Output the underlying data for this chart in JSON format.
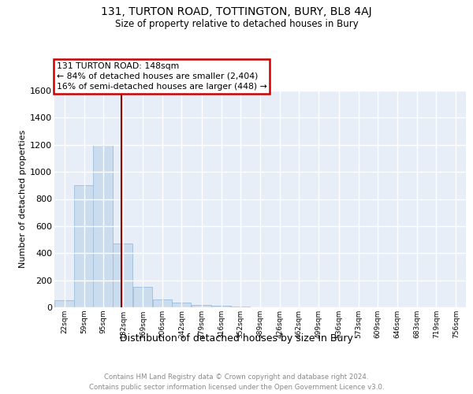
{
  "title": "131, TURTON ROAD, TOTTINGTON, BURY, BL8 4AJ",
  "subtitle": "Size of property relative to detached houses in Bury",
  "xlabel": "Distribution of detached houses by size in Bury",
  "ylabel": "Number of detached properties",
  "annotation_line1": "131 TURTON ROAD: 148sqm",
  "annotation_line2": "← 84% of detached houses are smaller (2,404)",
  "annotation_line3": "16% of semi-detached houses are larger (448) →",
  "property_size": 148,
  "bar_color": "#ccdcef",
  "bar_edge_color": "#9bbdd8",
  "plot_bg_color": "#e8eef8",
  "fig_bg_color": "#ffffff",
  "grid_color": "#ffffff",
  "ref_line_color": "#990000",
  "categories": [
    "22sqm",
    "59sqm",
    "95sqm",
    "132sqm",
    "169sqm",
    "206sqm",
    "242sqm",
    "279sqm",
    "316sqm",
    "352sqm",
    "389sqm",
    "426sqm",
    "462sqm",
    "499sqm",
    "536sqm",
    "573sqm",
    "609sqm",
    "646sqm",
    "683sqm",
    "719sqm",
    "756sqm"
  ],
  "bin_edges": [
    22,
    59,
    95,
    132,
    169,
    206,
    242,
    279,
    316,
    352,
    389,
    426,
    462,
    499,
    536,
    573,
    609,
    646,
    683,
    719,
    756
  ],
  "bin_width": 37,
  "values": [
    55,
    900,
    1200,
    470,
    150,
    58,
    33,
    18,
    13,
    8,
    0,
    0,
    0,
    0,
    0,
    0,
    0,
    0,
    0,
    0,
    0
  ],
  "ylim": [
    0,
    1600
  ],
  "yticks": [
    0,
    200,
    400,
    600,
    800,
    1000,
    1200,
    1400,
    1600
  ],
  "footer_line1": "Contains HM Land Registry data © Crown copyright and database right 2024.",
  "footer_line2": "Contains public sector information licensed under the Open Government Licence v3.0."
}
